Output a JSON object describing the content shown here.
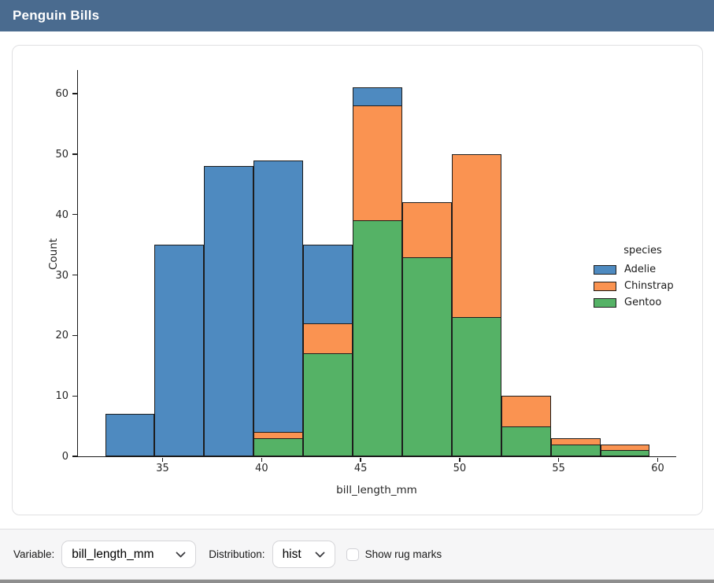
{
  "theme": {
    "header_bg": "#4a6b8f"
  },
  "header": {
    "title": "Penguin Bills"
  },
  "chart_data": {
    "type": "bar",
    "subtype": "stacked-histogram",
    "xlabel": "bill_length_mm",
    "ylabel": "Count",
    "bin_edges": [
      32.1,
      34.6,
      37.1,
      39.6,
      42.1,
      44.6,
      47.1,
      49.6,
      52.1,
      54.6,
      57.1,
      59.6
    ],
    "series": [
      {
        "name": "Gentoo",
        "color": "#55b266",
        "values": [
          0,
          0,
          0,
          3,
          17,
          39,
          33,
          23,
          5,
          2,
          1
        ]
      },
      {
        "name": "Chinstrap",
        "color": "#fa9351",
        "values": [
          0,
          0,
          0,
          1,
          5,
          19,
          9,
          27,
          5,
          1,
          1
        ]
      },
      {
        "name": "Adelie",
        "color": "#4e8ac0",
        "values": [
          7,
          35,
          48,
          45,
          13,
          3,
          0,
          0,
          0,
          0,
          0
        ]
      }
    ],
    "stack_order": "bottom-to-top as listed",
    "bin_totals": [
      7,
      35,
      48,
      49,
      35,
      61,
      42,
      50,
      10,
      3,
      2
    ],
    "xlim": [
      30.725,
      60.975
    ],
    "ylim": [
      0,
      64.05
    ],
    "xticks": [
      35,
      40,
      45,
      50,
      55,
      60
    ],
    "yticks": [
      0,
      10,
      20,
      30,
      40,
      50,
      60
    ],
    "grid": false,
    "bar_edge_color": "#1d1d1d",
    "legend": {
      "title": "species",
      "position": "center-right",
      "entries": [
        {
          "label": "Adelie",
          "color": "#4e8ac0"
        },
        {
          "label": "Chinstrap",
          "color": "#fa9351"
        },
        {
          "label": "Gentoo",
          "color": "#55b266"
        }
      ]
    }
  },
  "controls": {
    "variable_label": "Variable:",
    "variable_value": "bill_length_mm",
    "distribution_label": "Distribution:",
    "distribution_value": "hist",
    "rug_label": "Show rug marks",
    "rug_checked": false,
    "dropdown_icon": "chevron-down"
  }
}
